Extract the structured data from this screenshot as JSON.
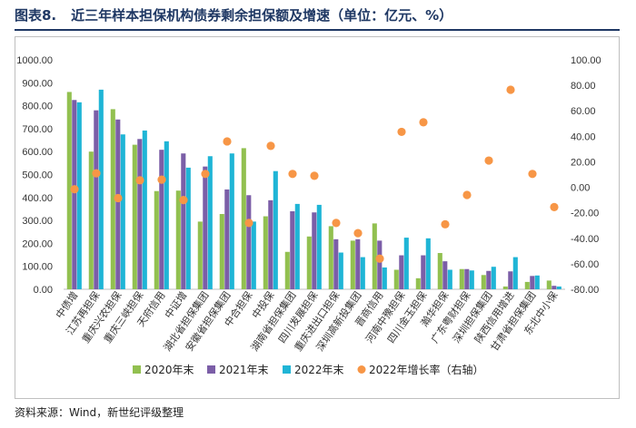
{
  "header": {
    "figure_number": "图表8.",
    "title": "近三年样本担保机构债券剩余担保额及增速（单位：亿元、%）"
  },
  "footer": {
    "source": "资料来源：Wind，新世纪评级整理"
  },
  "colors": {
    "s2020": "#92c050",
    "s2021": "#7b5ea7",
    "s2022": "#1fb5d6",
    "growth": "#f79646",
    "title": "#1f3864"
  },
  "chart_data": {
    "type": "bar",
    "title": "近三年样本担保机构债券剩余担保额及增速（单位：亿元、%）",
    "categories": [
      "中债增",
      "江苏再担保",
      "重庆兴农担保",
      "重庆三峡担保",
      "天府信用",
      "中证增",
      "湖北省担保集团",
      "安徽省担保集团",
      "中合担保",
      "中投保",
      "湖南省担保集团",
      "四川发展担保",
      "重庆进出口担保",
      "深圳高新投集团",
      "晋商信用",
      "河南中豫担保",
      "四川金玉担保",
      "瀚华担保",
      "广东粤财担保",
      "深圳担保集团",
      "陕西信用增进",
      "甘肃省担保集团",
      "东北中小保"
    ],
    "series": [
      {
        "name": "2020年末",
        "type": "bar",
        "axis": "left",
        "values": [
          860,
          600,
          785,
          630,
          428,
          430,
          295,
          328,
          615,
          318,
          163,
          230,
          275,
          212,
          287,
          85,
          48,
          158,
          88,
          62,
          12,
          32,
          38
        ]
      },
      {
        "name": "2021年末",
        "type": "bar",
        "axis": "left",
        "values": [
          825,
          780,
          740,
          655,
          608,
          592,
          535,
          435,
          410,
          388,
          340,
          335,
          218,
          218,
          212,
          148,
          148,
          122,
          88,
          80,
          78,
          58,
          15
        ]
      },
      {
        "name": "2022年末",
        "type": "bar",
        "axis": "left",
        "values": [
          815,
          870,
          675,
          692,
          645,
          530,
          580,
          592,
          295,
          515,
          372,
          368,
          160,
          140,
          95,
          225,
          222,
          85,
          82,
          98,
          140,
          60,
          12
        ]
      },
      {
        "name": "2022年增长率（右轴）",
        "type": "scatter",
        "axis": "right",
        "values": [
          -1.5,
          11,
          -8.5,
          5.5,
          6,
          -10,
          10.5,
          36,
          -28,
          32.5,
          10.5,
          9,
          -28,
          -36,
          -56,
          43.5,
          51,
          -29,
          -6,
          21,
          76.5,
          10.5,
          -15.5
        ]
      }
    ],
    "y_left": {
      "min": 0,
      "max": 1000,
      "step": 100,
      "ticks": [
        "0.00",
        "100.00",
        "200.00",
        "300.00",
        "400.00",
        "500.00",
        "600.00",
        "700.00",
        "800.00",
        "900.00",
        "1000.00"
      ]
    },
    "y_right": {
      "min": -80,
      "max": 100,
      "step": 20,
      "ticks": [
        "-80.00",
        "-60.00",
        "-40.00",
        "-20.00",
        "0.00",
        "20.00",
        "40.00",
        "60.00",
        "80.00",
        "100.00"
      ]
    },
    "legend": [
      "2020年末",
      "2021年末",
      "2022年末",
      "2022年增长率（右轴）"
    ],
    "legend_position": "bottom",
    "grid": false
  }
}
